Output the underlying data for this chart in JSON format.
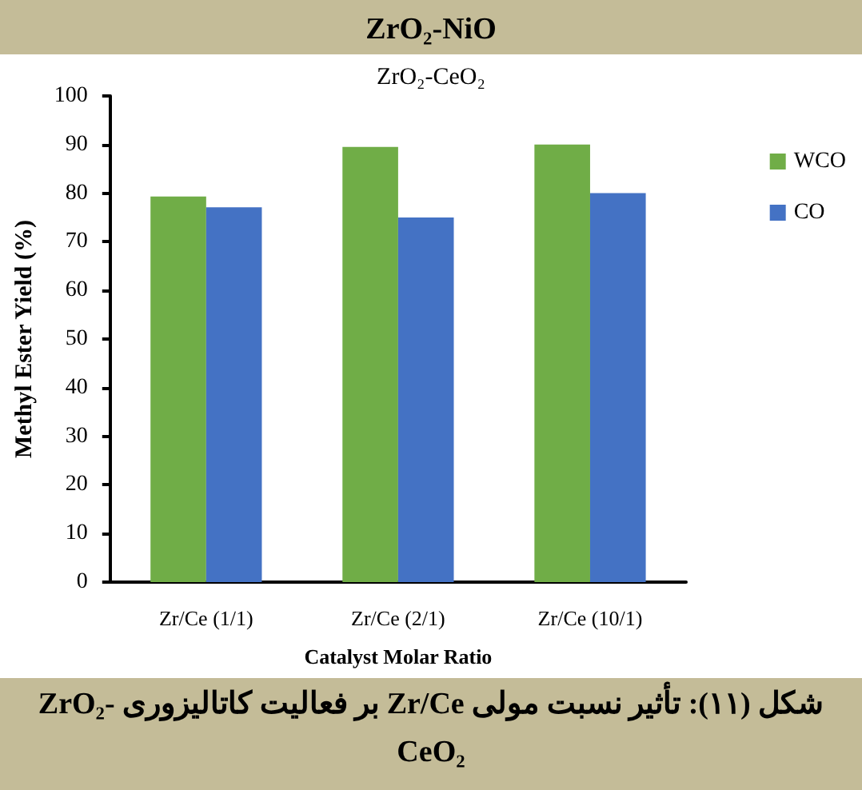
{
  "chart_data": {
    "type": "bar",
    "title": "ZrO₂-NiO",
    "subtitle": "ZrO₂-CeO₂",
    "xlabel": "Catalyst Molar Ratio",
    "ylabel": "Methyl Ester Yield (%)",
    "categories": [
      "Zr/Ce (1/1)",
      "Zr/Ce (2/1)",
      "Zr/Ce (10/1)"
    ],
    "series": [
      {
        "name": "WCO",
        "color": "#70ad47",
        "values": [
          79.3,
          89.5,
          90
        ]
      },
      {
        "name": "CO",
        "color": "#4472c4",
        "values": [
          77.1,
          75,
          80
        ]
      }
    ],
    "ylim": [
      0,
      100
    ],
    "yticks": [
      0,
      10,
      20,
      30,
      40,
      50,
      60,
      70,
      80,
      90,
      100
    ],
    "grid": false,
    "legend": "right",
    "annotations": [
      "شکل (۱۱): تأثیر نسبت مولی Zr/Ce بر فعالیت کاتالیزوری ZrO₂-CeO₂"
    ]
  }
}
